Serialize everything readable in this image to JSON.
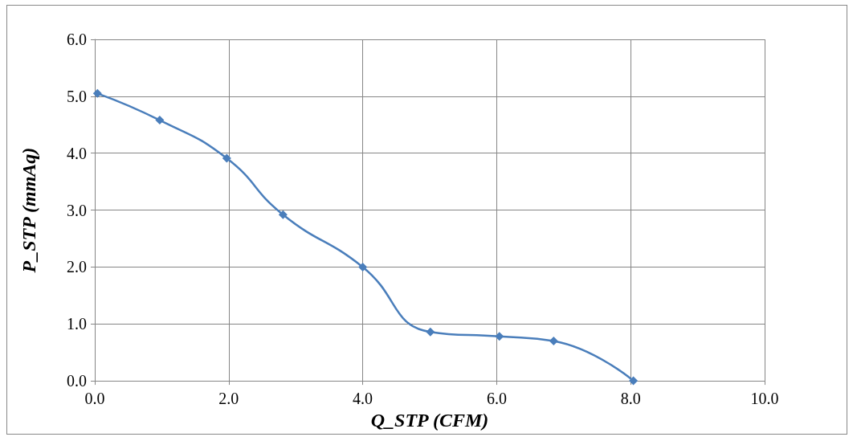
{
  "chart_data": {
    "type": "line",
    "xlabel": "Q_STP (CFM)",
    "ylabel": "P_STP (mmAq)",
    "series": [
      {
        "color": "#4a7ebb",
        "x": [
          0.04,
          0.97,
          1.97,
          2.81,
          4.0,
          5.01,
          6.04,
          6.85,
          8.04
        ],
        "values": [
          5.05,
          4.58,
          3.91,
          2.92,
          2.0,
          0.86,
          0.78,
          0.7,
          0.0
        ]
      }
    ],
    "xlim": [
      0,
      10
    ],
    "ylim": [
      0,
      6
    ],
    "xticks": [
      {
        "value": 0,
        "label": "0.0"
      },
      {
        "value": 2,
        "label": "2.0"
      },
      {
        "value": 4,
        "label": "4.0"
      },
      {
        "value": 6,
        "label": "6.0"
      },
      {
        "value": 8,
        "label": "8.0"
      },
      {
        "value": 10,
        "label": "10.0"
      }
    ],
    "yticks": [
      {
        "value": 0,
        "label": "0.0"
      },
      {
        "value": 1,
        "label": "1.0"
      },
      {
        "value": 2,
        "label": "2.0"
      },
      {
        "value": 3,
        "label": "3.0"
      },
      {
        "value": 4,
        "label": "4.0"
      },
      {
        "value": 5,
        "label": "5.0"
      },
      {
        "value": 6,
        "label": "6.0"
      }
    ],
    "grid": true,
    "marker": "diamond",
    "line_style": "solid"
  }
}
